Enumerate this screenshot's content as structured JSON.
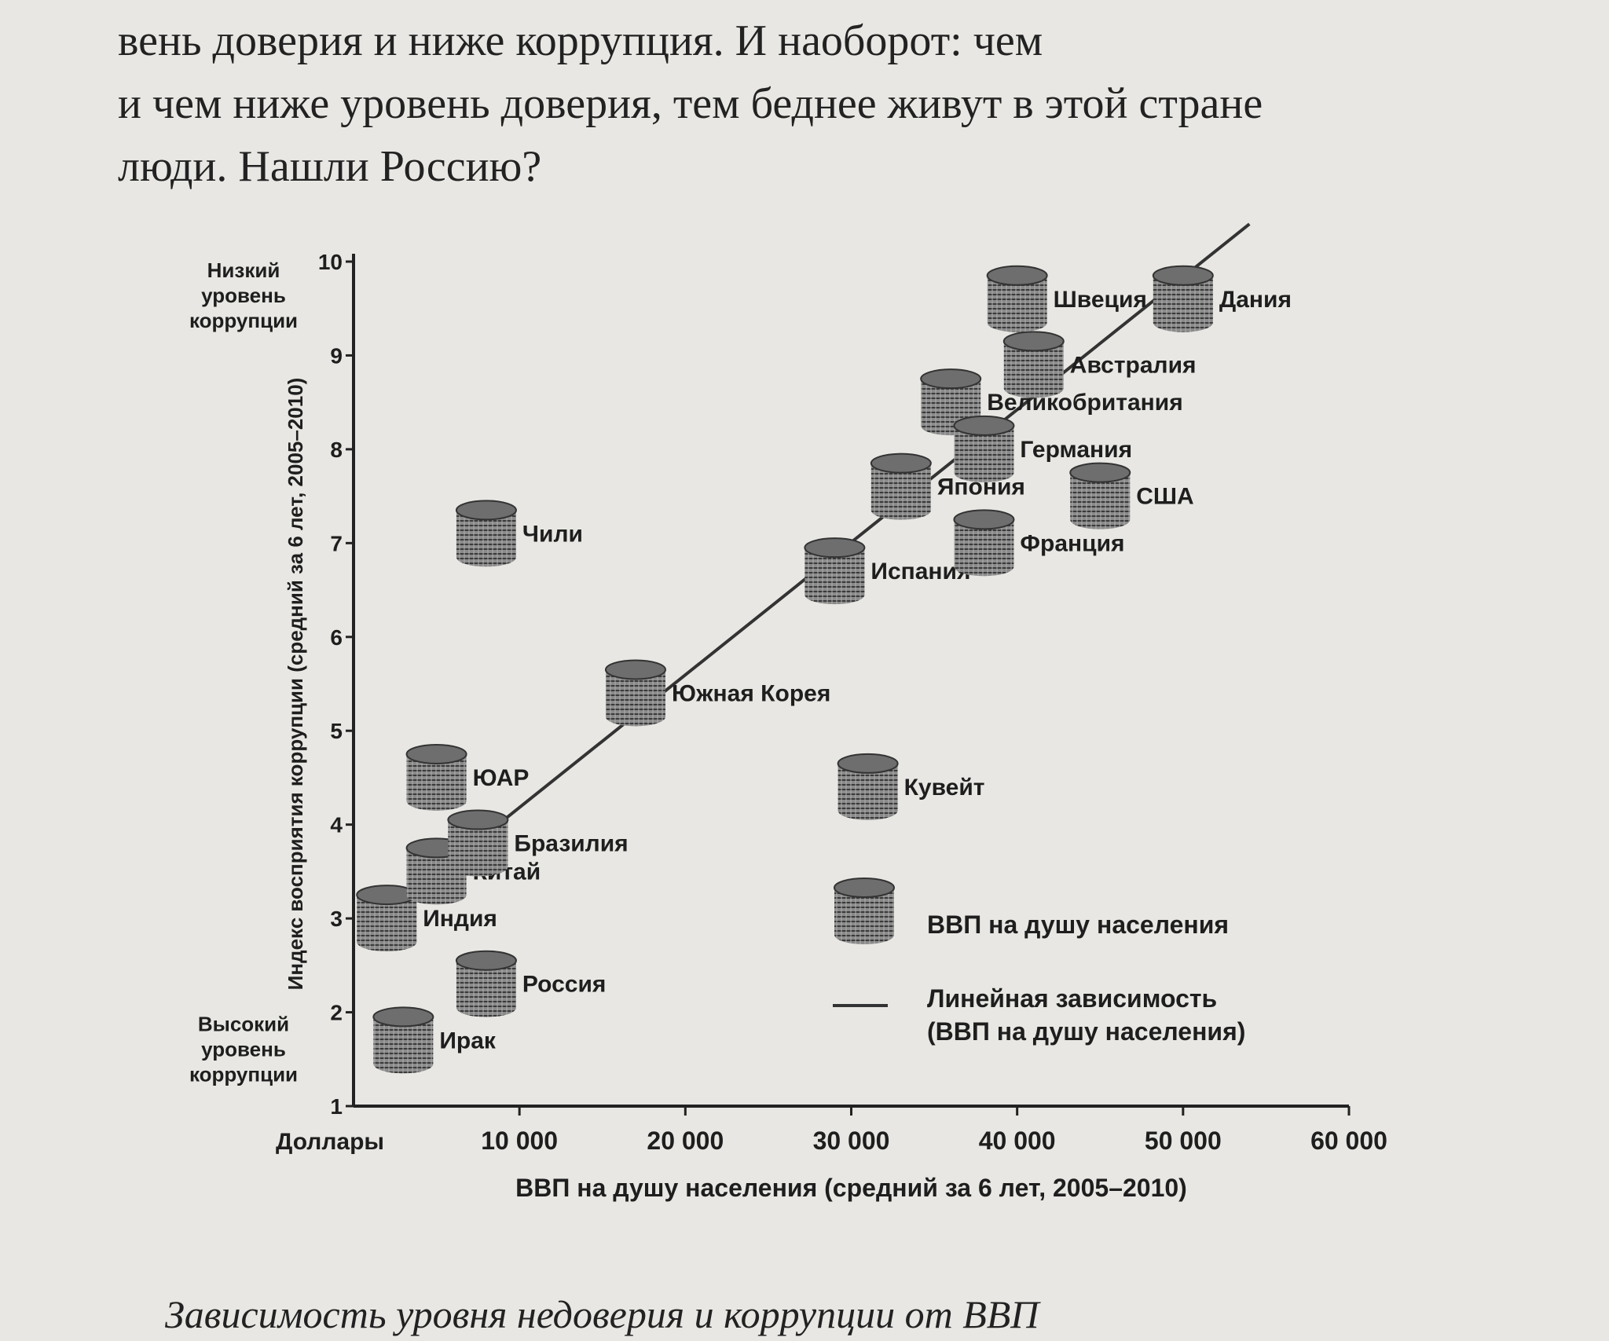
{
  "page": {
    "text_lines": [
      "вень доверия и ниже коррупция. И наоборот: чем",
      "и чем ниже уровень доверия, тем беднее живут в этой стране",
      "люди. Нашли Россию?"
    ],
    "caption": "Зависимость уровня недоверия и коррупции от ВВП"
  },
  "chart_data": {
    "type": "scatter",
    "y_label": "Индекс восприятия коррупции (средний за 6 лет, 2005–2010)",
    "x_label": "ВВП на душу населения (средний за 6 лет, 2005–2010)",
    "x_unit": "Доллары",
    "y_top_note": "Низкий уровень коррупции",
    "y_bottom_note": "Высокий уровень коррупции",
    "xlim": [
      0,
      60000
    ],
    "xticks": [
      {
        "value": 10000,
        "label": "10 000"
      },
      {
        "value": 20000,
        "label": "20 000"
      },
      {
        "value": 30000,
        "label": "30 000"
      },
      {
        "value": 40000,
        "label": "40 000"
      },
      {
        "value": 50000,
        "label": "50 000"
      },
      {
        "value": 60000,
        "label": "60 000"
      }
    ],
    "ylim": [
      1,
      10
    ],
    "yticks": [
      1,
      2,
      3,
      4,
      5,
      6,
      7,
      8,
      9,
      10
    ],
    "series": [
      {
        "name": "ВВП на душу населения",
        "color": "#6e6e6e",
        "labels": [
          "Ирак",
          "Россия",
          "Индия",
          "Китай",
          "Бразилия",
          "ЮАР",
          "Чили",
          "Южная Корея",
          "Кувейт",
          "Испания",
          "Япония",
          "Великобритания",
          "Германия",
          "Франция",
          "США",
          "Австралия",
          "Швеция",
          "Дания"
        ],
        "x": [
          3000,
          8000,
          2000,
          5000,
          7500,
          5000,
          8000,
          17000,
          31000,
          29000,
          33000,
          36000,
          38000,
          38000,
          45000,
          41000,
          40000,
          50000
        ],
        "y": [
          1.7,
          2.3,
          3.0,
          3.5,
          3.8,
          4.5,
          7.1,
          5.4,
          4.4,
          6.7,
          7.6,
          8.5,
          8.0,
          7.0,
          7.5,
          8.9,
          9.6,
          9.6
        ]
      }
    ],
    "trend_line": {
      "name": "Линейная зависимость (ВВП на душу населения)",
      "color": "#333333",
      "x": [
        8000,
        54000
      ],
      "y": [
        3.9,
        10.4
      ]
    }
  }
}
